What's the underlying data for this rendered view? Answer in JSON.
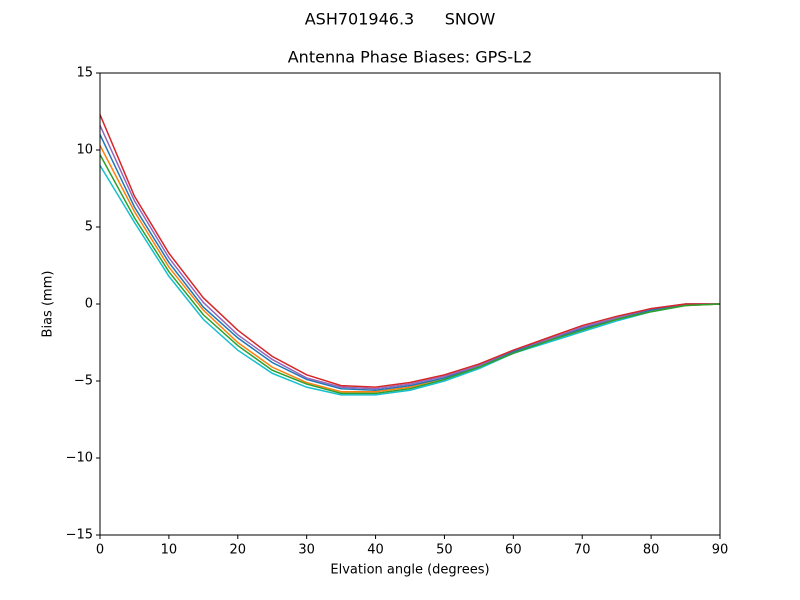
{
  "chart_data": {
    "type": "line",
    "suptitle": "ASH701946.3      SNOW",
    "title": "Antenna Phase Biases: GPS-L2",
    "x_label": "Elvation angle (degrees)",
    "y_label": "Bias (mm)",
    "x": [
      0,
      5,
      10,
      15,
      20,
      25,
      30,
      35,
      40,
      45,
      50,
      55,
      60,
      65,
      70,
      75,
      80,
      85,
      90
    ],
    "xlim": [
      0,
      90
    ],
    "xticks": [
      0,
      10,
      20,
      30,
      40,
      50,
      60,
      70,
      80,
      90
    ],
    "ylim": [
      -15,
      15
    ],
    "yticks": [
      {
        "value": -15,
        "label": "−15"
      },
      {
        "value": -10,
        "label": "−10"
      },
      {
        "value": -5,
        "label": "−5"
      },
      0,
      5,
      10,
      15
    ],
    "series": [
      {
        "color": "#17becf",
        "values": [
          9.0,
          5.3,
          1.8,
          -1.0,
          -3.0,
          -4.5,
          -5.4,
          -5.9,
          -5.9,
          -5.6,
          -5.0,
          -4.2,
          -3.2,
          -2.5,
          -1.8,
          -1.1,
          -0.5,
          -0.1,
          0
        ]
      },
      {
        "color": "#ff7f0e",
        "values": [
          10.3,
          6.0,
          2.4,
          -0.4,
          -2.5,
          -4.1,
          -5.1,
          -5.7,
          -5.7,
          -5.4,
          -4.8,
          -4.1,
          -3.1,
          -2.4,
          -1.6,
          -1.0,
          -0.4,
          -0.1,
          0
        ]
      },
      {
        "color": "#1f77b4",
        "values": [
          11.0,
          6.3,
          2.7,
          -0.2,
          -2.2,
          -3.8,
          -4.9,
          -5.5,
          -5.6,
          -5.3,
          -4.8,
          -4.0,
          -3.1,
          -2.3,
          -1.6,
          -0.9,
          -0.4,
          0,
          0
        ]
      },
      {
        "color": "#9467bd",
        "values": [
          11.6,
          6.7,
          3.0,
          0.1,
          -2.0,
          -3.6,
          -4.8,
          -5.4,
          -5.5,
          -5.2,
          -4.7,
          -4.0,
          -3.0,
          -2.3,
          -1.5,
          -0.9,
          -0.3,
          0,
          0
        ]
      },
      {
        "color": "#d62728",
        "values": [
          12.3,
          7.0,
          3.3,
          0.4,
          -1.7,
          -3.4,
          -4.6,
          -5.3,
          -5.4,
          -5.1,
          -4.6,
          -3.9,
          -3.0,
          -2.2,
          -1.4,
          -0.8,
          -0.3,
          0,
          0
        ]
      },
      {
        "color": "#2ca02c",
        "values": [
          9.7,
          5.6,
          2.1,
          -0.7,
          -2.7,
          -4.3,
          -5.2,
          -5.8,
          -5.8,
          -5.5,
          -4.9,
          -4.1,
          -3.2,
          -2.4,
          -1.7,
          -1.0,
          -0.5,
          -0.1,
          0
        ]
      }
    ]
  }
}
